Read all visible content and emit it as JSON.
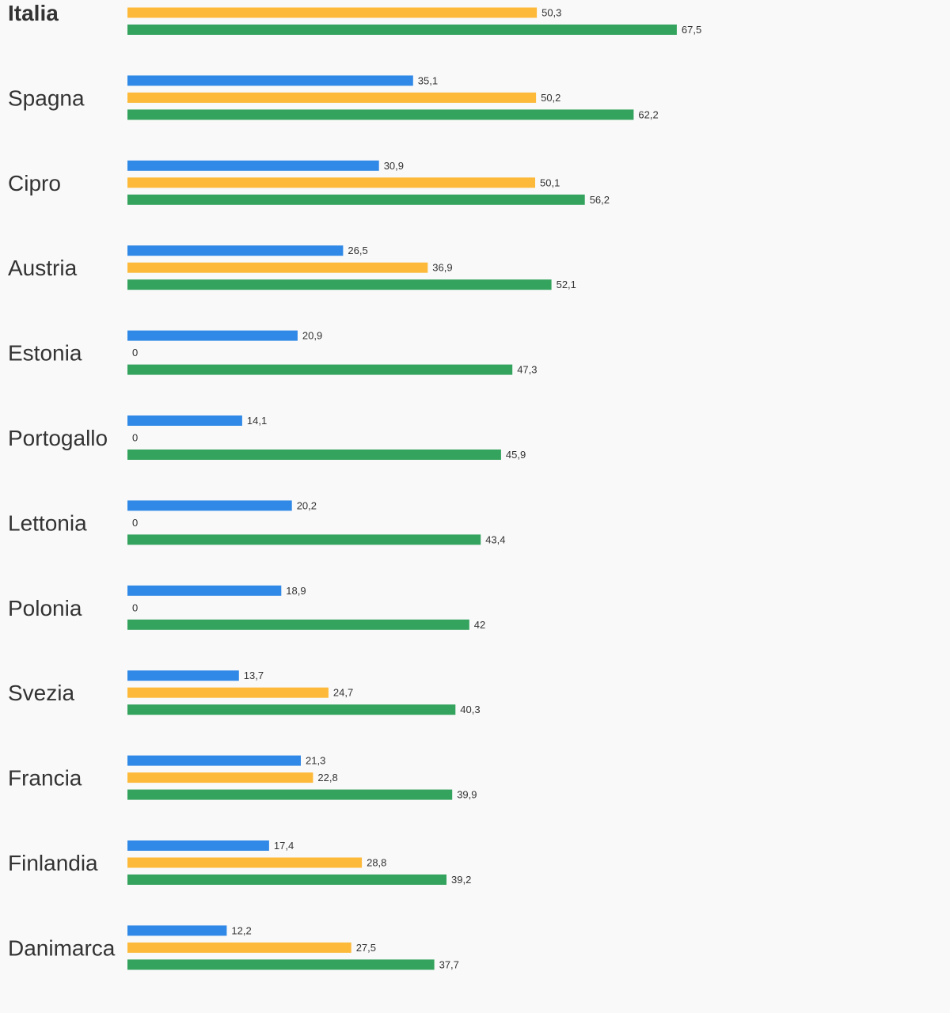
{
  "chart_data": {
    "type": "bar",
    "orientation": "horizontal",
    "categories": [
      "Italia",
      "Spagna",
      "Cipro",
      "Austria",
      "Estonia",
      "Portogallo",
      "Lettonia",
      "Polonia",
      "Svezia",
      "Francia",
      "Finlandia",
      "Danimarca"
    ],
    "bold_categories": [
      "Italia"
    ],
    "series": [
      {
        "color": "#3189e7",
        "values": [
          null,
          35.1,
          30.9,
          26.5,
          20.9,
          14.1,
          20.2,
          18.9,
          13.7,
          21.3,
          17.4,
          12.2
        ],
        "labels": [
          "",
          "35,1",
          "30,9",
          "26,5",
          "20,9",
          "14,1",
          "20,2",
          "18,9",
          "13,7",
          "21,3",
          "17,4",
          "12,2"
        ]
      },
      {
        "color": "#fdb93a",
        "values": [
          50.3,
          50.2,
          50.1,
          36.9,
          0,
          0,
          0,
          0,
          24.7,
          22.8,
          28.8,
          27.5
        ],
        "labels": [
          "50,3",
          "50,2",
          "50,1",
          "36,9",
          "0",
          "0",
          "0",
          "0",
          "24,7",
          "22,8",
          "28,8",
          "27,5"
        ]
      },
      {
        "color": "#34a35d",
        "values": [
          67.5,
          62.2,
          56.2,
          52.1,
          47.3,
          45.9,
          43.4,
          42,
          40.3,
          39.9,
          39.2,
          37.7
        ],
        "labels": [
          "67,5",
          "62,2",
          "56,2",
          "52,1",
          "47,3",
          "45,9",
          "43,4",
          "42",
          "40,3",
          "39,9",
          "39,2",
          "37,7"
        ]
      }
    ],
    "xlim": [
      0,
      100
    ],
    "grid": false,
    "legend": "none"
  }
}
